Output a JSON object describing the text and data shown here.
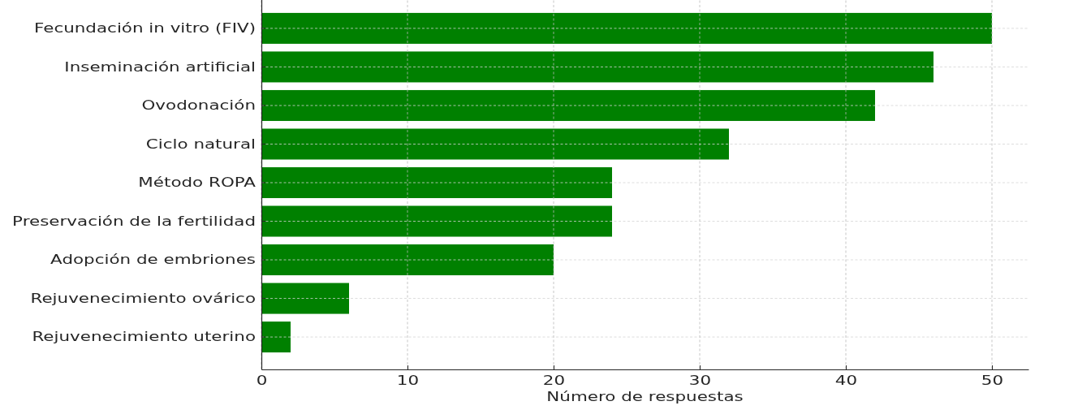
{
  "chart_data": {
    "type": "bar",
    "orientation": "horizontal",
    "categories": [
      "Fecundación in vitro (FIV)",
      "Inseminación artificial",
      "Ovodonación",
      "Ciclo natural",
      "Método ROPA",
      "Preservación de la fertilidad",
      "Adopción de embriones",
      "Rejuvenecimiento ovárico",
      "Rejuvenecimiento uterino"
    ],
    "values": [
      50,
      46,
      42,
      32,
      24,
      24,
      20,
      6,
      2
    ],
    "color": "#008000",
    "xlabel": "Número de respuestas",
    "xlim": [
      0,
      52.5
    ],
    "xticks": [
      0,
      10,
      20,
      30,
      40,
      50
    ],
    "grid": true
  }
}
